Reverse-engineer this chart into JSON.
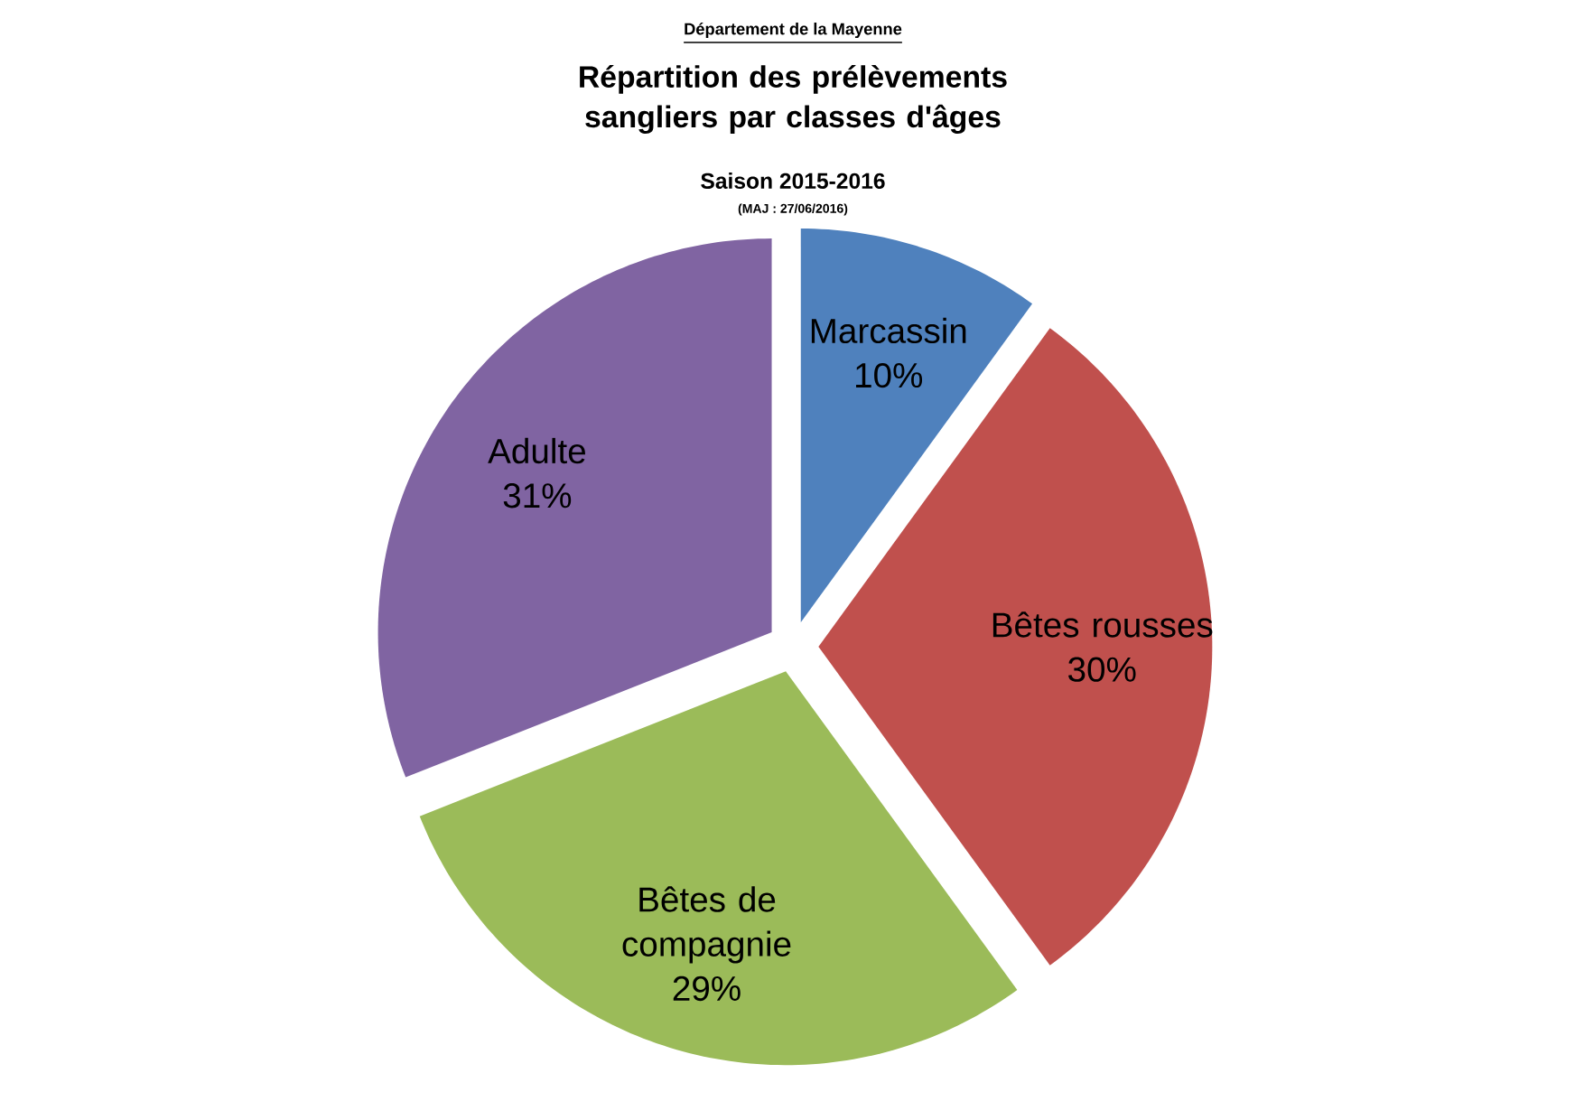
{
  "chart_data": {
    "type": "pie",
    "title": "Répartition des prélèvements sangliers par classes d'âges",
    "subtitle": "Saison 2015-2016",
    "annotations": [
      "Département de la Mayenne",
      "(MAJ : 27/06/2016)"
    ],
    "categories": [
      "Marcassin",
      "Bêtes rousses",
      "Bêtes de compagnie",
      "Adulte"
    ],
    "values": [
      10,
      30,
      29,
      31
    ],
    "value_labels": [
      "10%",
      "30%",
      "29%",
      "31%"
    ],
    "colors": [
      "#4f81bd",
      "#c0504d",
      "#9bbb59",
      "#8064a2"
    ]
  }
}
